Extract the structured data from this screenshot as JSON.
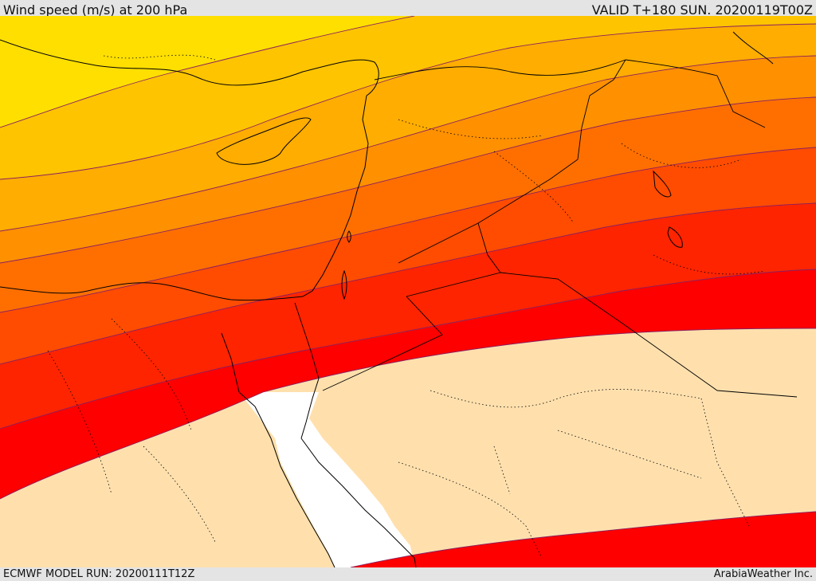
{
  "header": {
    "title": "Wind speed (m/s) at 200 hPa",
    "valid_time": "VALID T+180 SUN. 20200119T00Z"
  },
  "footer": {
    "model_run": "ECMWF MODEL RUN: 20200111T12Z",
    "provider": "ArabiaWeather Inc."
  },
  "map": {
    "variable": "wind speed",
    "units": "m/s",
    "level": "200 hPa",
    "fill_bands": [
      {
        "name": "band-1",
        "color": "#ffdf00"
      },
      {
        "name": "band-2",
        "color": "#ffc400"
      },
      {
        "name": "band-3",
        "color": "#ffad00"
      },
      {
        "name": "band-4",
        "color": "#ff9000"
      },
      {
        "name": "band-5",
        "color": "#ff6f00"
      },
      {
        "name": "band-6",
        "color": "#ff4c00"
      },
      {
        "name": "band-7",
        "color": "#ff2400"
      },
      {
        "name": "band-8",
        "color": "#ff0000"
      },
      {
        "name": "below-threshold",
        "color": "#ffe0ad"
      }
    ],
    "sea_color": "#ffffff"
  }
}
